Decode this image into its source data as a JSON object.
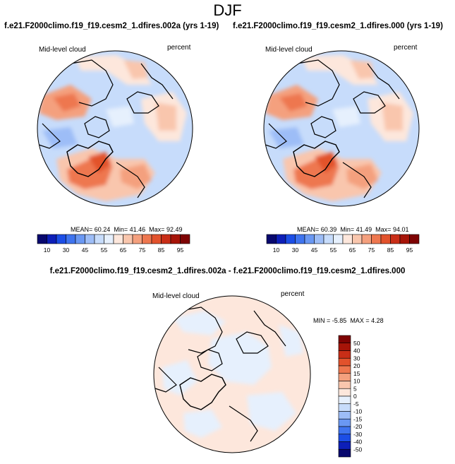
{
  "main_title": "DJF",
  "panels": [
    {
      "title": "f.e21.F2000climo.f19_f19.cesm2_1.dfires.002a (yrs 1-19)",
      "left_label": "Mid-level cloud",
      "right_label": "percent",
      "stats": {
        "mean_label": "MEAN=",
        "mean": "60.24",
        "min_label": "Min=",
        "min": "41.46",
        "max_label": "Max=",
        "max": "92.49"
      }
    },
    {
      "title": "f.e21.F2000climo.f19_f19.cesm2_1.dfires.000 (yrs 1-19)",
      "left_label": "Mid-level cloud",
      "right_label": "percent",
      "stats": {
        "mean_label": "MEAN=",
        "mean": "60.39",
        "min_label": "Min=",
        "min": "41.49",
        "max_label": "Max=",
        "max": "94.01"
      }
    },
    {
      "title": "f.e21.F2000climo.f19_f19.cesm2_1.dfires.002a - f.e21.F2000climo.f19_f19.cesm2_1.dfires.000",
      "left_label": "Mid-level cloud",
      "right_label": "percent",
      "stats": {
        "min_label": "MIN =",
        "min": "-5.85",
        "max_label": "MAX =",
        "max": "4.28"
      }
    }
  ],
  "chart_data": [
    {
      "type": "heatmap",
      "title": "f.e21.F2000climo.f19_f19.cesm2_1.dfires.002a (yrs 1-19)",
      "variable": "Mid-level cloud",
      "units": "percent",
      "projection": "north polar stereographic",
      "mean": 60.24,
      "min": 41.46,
      "max": 92.49,
      "colorbar_ticks": [
        "10",
        "30",
        "45",
        "55",
        "65",
        "75",
        "85",
        "95"
      ],
      "colorbar_colors": [
        "#08086e",
        "#0d1fb8",
        "#1c4ee6",
        "#3f74ef",
        "#6a98f3",
        "#9dbdf7",
        "#c7dcfb",
        "#e6f0fd",
        "#fde7dc",
        "#f9c6ad",
        "#f4a07e",
        "#ee774f",
        "#e2522c",
        "#c92e17",
        "#a61408",
        "#7e0303"
      ]
    },
    {
      "type": "heatmap",
      "title": "f.e21.F2000climo.f19_f19.cesm2_1.dfires.000 (yrs 1-19)",
      "variable": "Mid-level cloud",
      "units": "percent",
      "projection": "north polar stereographic",
      "mean": 60.39,
      "min": 41.49,
      "max": 94.01,
      "colorbar_ticks": [
        "10",
        "30",
        "45",
        "55",
        "65",
        "75",
        "85",
        "95"
      ],
      "colorbar_colors": [
        "#08086e",
        "#0d1fb8",
        "#1c4ee6",
        "#3f74ef",
        "#6a98f3",
        "#9dbdf7",
        "#c7dcfb",
        "#e6f0fd",
        "#fde7dc",
        "#f9c6ad",
        "#f4a07e",
        "#ee774f",
        "#e2522c",
        "#c92e17",
        "#a61408",
        "#7e0303"
      ]
    },
    {
      "type": "heatmap",
      "title": "f.e21.F2000climo.f19_f19.cesm2_1.dfires.002a - f.e21.F2000climo.f19_f19.cesm2_1.dfires.000",
      "variable": "Mid-level cloud",
      "units": "percent",
      "projection": "north polar stereographic",
      "min": -5.85,
      "max": 4.28,
      "colorbar_ticks": [
        "50",
        "40",
        "30",
        "20",
        "15",
        "10",
        "5",
        "0",
        "-5",
        "-10",
        "-15",
        "-20",
        "-30",
        "-40",
        "-50"
      ],
      "colorbar_colors": [
        "#7e0303",
        "#a61408",
        "#c92e17",
        "#e2522c",
        "#ee774f",
        "#f4a07e",
        "#f9c6ad",
        "#fde7dc",
        "#e6f0fd",
        "#c7dcfb",
        "#9dbdf7",
        "#6a98f3",
        "#3f74ef",
        "#1c4ee6",
        "#0d1fb8",
        "#08086e"
      ]
    }
  ]
}
